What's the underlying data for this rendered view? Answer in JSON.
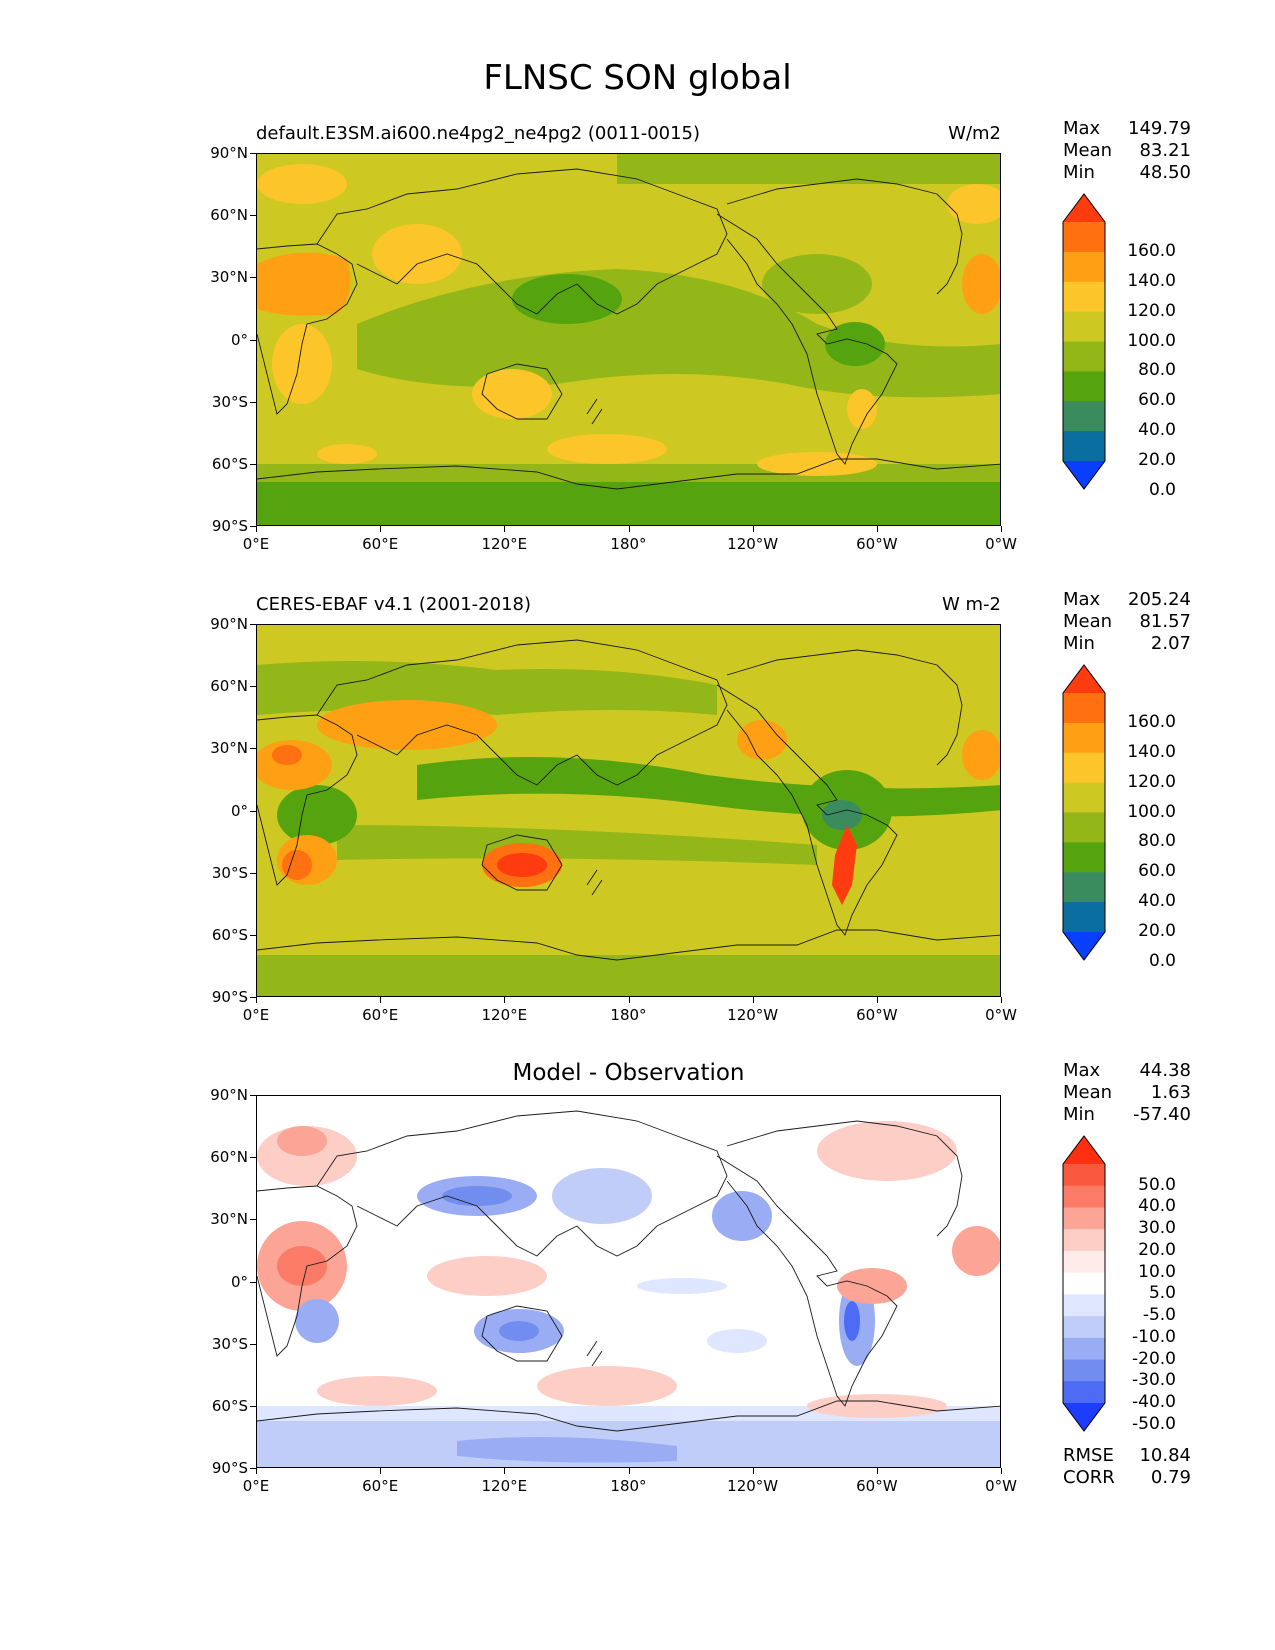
{
  "figure_title": "FLNSC SON global",
  "lat_labels": [
    "90°N",
    "60°N",
    "30°N",
    "0°",
    "30°S",
    "60°S",
    "90°S"
  ],
  "lon_labels": [
    "0°E",
    "60°E",
    "120°E",
    "180°",
    "120°W",
    "60°W",
    "0°W"
  ],
  "panels": [
    {
      "title_left": "default.E3SM.ai600.ne4pg2_ne4pg2 (0011-0015)",
      "title_right": "W/m2",
      "stats": {
        "max_label": "Max",
        "max": "149.79",
        "mean_label": "Mean",
        "mean": "83.21",
        "min_label": "Min",
        "min": "48.50"
      },
      "colorbar_labels": [
        "160.0",
        "140.0",
        "120.0",
        "100.0",
        "80.0",
        "60.0",
        "40.0",
        "20.0",
        "0.0"
      ],
      "colorbar_colors": [
        "#ff3b10",
        "#ff7010",
        "#ff9f14",
        "#fcc52a",
        "#cec823",
        "#93b719",
        "#55a40f",
        "#3a8c5e",
        "#0a6fa0",
        "#0a3fff"
      ]
    },
    {
      "title_left": "CERES-EBAF v4.1 (2001-2018)",
      "title_right": "W m-2",
      "stats": {
        "max_label": "Max",
        "max": "205.24",
        "mean_label": "Mean",
        "mean": "81.57",
        "min_label": "Min",
        "min": "2.07"
      },
      "colorbar_labels": [
        "160.0",
        "140.0",
        "120.0",
        "100.0",
        "80.0",
        "60.0",
        "40.0",
        "20.0",
        "0.0"
      ],
      "colorbar_colors": [
        "#ff3b10",
        "#ff7010",
        "#ff9f14",
        "#fcc52a",
        "#cec823",
        "#93b719",
        "#55a40f",
        "#3a8c5e",
        "#0a6fa0",
        "#0a3fff"
      ]
    },
    {
      "title_center": "Model - Observation",
      "stats": {
        "max_label": "Max",
        "max": "44.38",
        "mean_label": "Mean",
        "mean": "1.63",
        "min_label": "Min",
        "min": "-57.40"
      },
      "colorbar_labels": [
        "50.0",
        "40.0",
        "30.0",
        "20.0",
        "10.0",
        "5.0",
        "-5.0",
        "-10.0",
        "-20.0",
        "-30.0",
        "-40.0",
        "-50.0"
      ],
      "colorbar_colors": [
        "#ff3010",
        "#f9593e",
        "#fb7b66",
        "#fca596",
        "#fdcec5",
        "#ffecea",
        "#ffffff",
        "#dfe6ff",
        "#c1cdf9",
        "#9aadf4",
        "#728df0",
        "#4d6cf3",
        "#1c3cff"
      ],
      "rmse_label": "RMSE",
      "rmse": "10.84",
      "corr_label": "CORR",
      "corr": "0.79"
    }
  ],
  "colors": {
    "model_bg": "#cec823",
    "obs_bg": "#cec823",
    "diff_bg": "#ffffff",
    "coast": "#1a1a1a"
  }
}
